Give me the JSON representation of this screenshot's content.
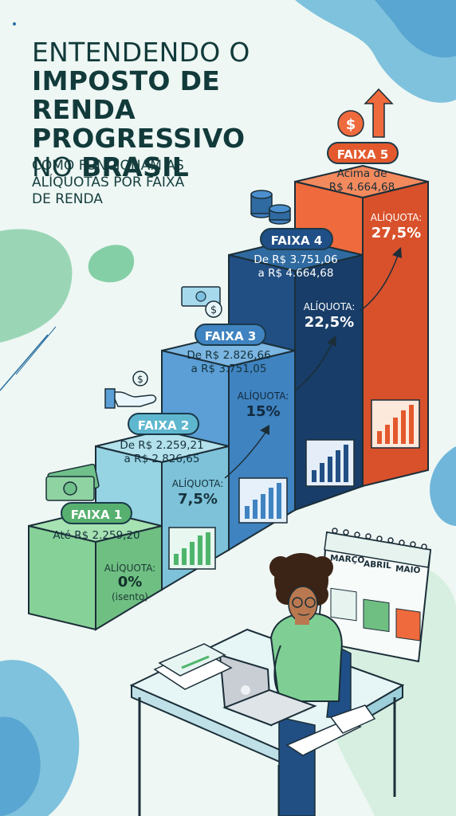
{
  "title": {
    "line1": "ENTENDENDO O",
    "line2": "IMPOSTO DE RENDA",
    "line3": "PROGRESSIVO",
    "line4_light": "NO",
    "line4_bold": "BRASIL"
  },
  "subtitle": {
    "line1": "COMO FUNCIONAM AS",
    "line2": "ALÍQUOTAS POR FAIXA",
    "line3": "DE RENDA"
  },
  "brackets": [
    {
      "label": "FAIXA 1",
      "range_line1": "Até R$ 2.259,20",
      "range_line2": "",
      "rate_label": "ALÍQUOTA:",
      "rate": "0%",
      "note": "(isento)",
      "rate_percent": 0
    },
    {
      "label": "FAIXA 2",
      "range_line1": "De R$ 2.259,21",
      "range_line2": "a R$ 2.826,65",
      "rate_label": "ALÍQUOTA:",
      "rate": "7,5%",
      "rate_percent": 7.5
    },
    {
      "label": "FAIXA 3",
      "range_line1": "De R$ 2.826,66",
      "range_line2": "a R$ 3.751,05",
      "rate_label": "ALÍQUOTA:",
      "rate": "15%",
      "rate_percent": 15
    },
    {
      "label": "FAIXA 4",
      "range_line1": "De R$ 3.751,06",
      "range_line2": "a R$ 4.664,68",
      "rate_label": "ALÍQUOTA:",
      "rate": "22,5%",
      "rate_percent": 22.5
    },
    {
      "label": "FAIXA 5",
      "range_line1": "Acima de",
      "range_line2": "R$ 4.664,68",
      "rate_label": "ALÍQUOTA:",
      "rate": "27,5%",
      "rate_percent": 27.5
    }
  ],
  "calendar": {
    "months": [
      "MARÇO",
      "ABRIL",
      "MAIO"
    ]
  },
  "colors": {
    "faixa1": "#7fcf94",
    "faixa2": "#8fcfe0",
    "faixa3": "#5b9fd6",
    "faixa4": "#1f4f86",
    "faixa5": "#ee6a3c",
    "background": "#eef7f4",
    "title": "#123a3a"
  },
  "icons": [
    "money-bill-icon",
    "hand-coin-icon",
    "cash-coin-icon",
    "coin-stack-icon",
    "dollar-arrow-up-icon",
    "bar-chart-icon",
    "calendar-icon",
    "laptop-icon",
    "document-icon",
    "receipt-icon",
    "person-illustration"
  ]
}
